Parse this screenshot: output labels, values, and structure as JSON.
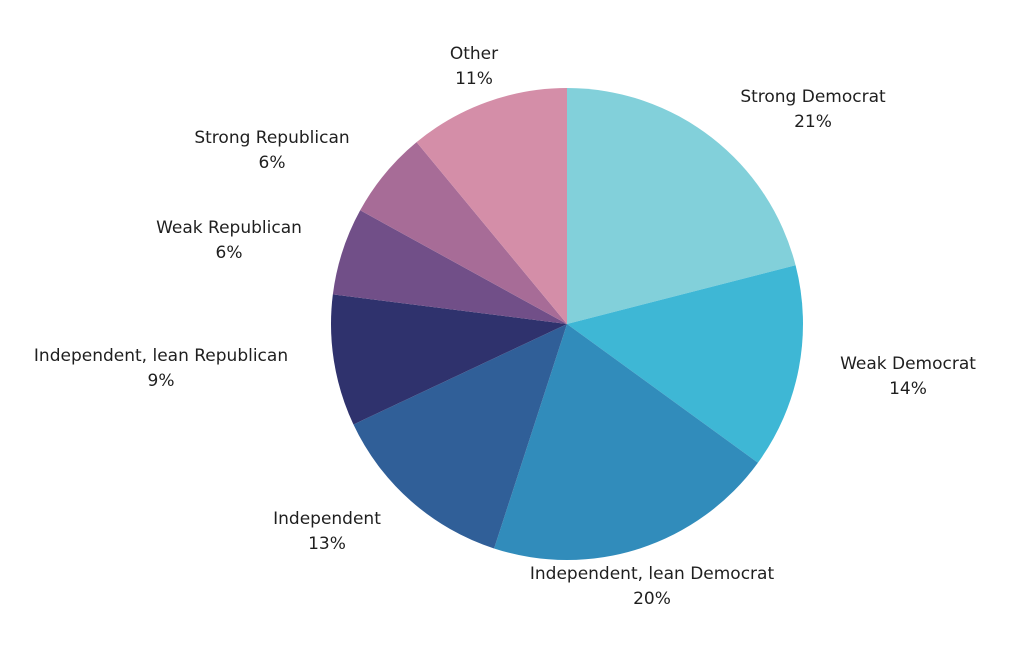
{
  "chart_data": {
    "type": "pie",
    "title": "",
    "start": "12 o'clock",
    "direction": "clockwise",
    "legend": "none",
    "slices": [
      {
        "label": "Strong Democrat",
        "value": 21,
        "value_label": "21%",
        "color": "#82d0da"
      },
      {
        "label": "Weak Democrat",
        "value": 14,
        "value_label": "14%",
        "color": "#3eb7d5"
      },
      {
        "label": "Independent, lean Democrat",
        "value": 20,
        "value_label": "20%",
        "color": "#318cbb"
      },
      {
        "label": "Independent",
        "value": 13,
        "value_label": "13%",
        "color": "#305f98"
      },
      {
        "label": "Independent, lean Republican",
        "value": 9,
        "value_label": "9%",
        "color": "#2f326d"
      },
      {
        "label": "Weak Republican",
        "value": 6,
        "value_label": "6%",
        "color": "#714f88"
      },
      {
        "label": "Strong Republican",
        "value": 6,
        "value_label": "6%",
        "color": "#a76c97"
      },
      {
        "label": "Other",
        "value": 11,
        "value_label": "11%",
        "color": "#d48ea8"
      }
    ]
  }
}
